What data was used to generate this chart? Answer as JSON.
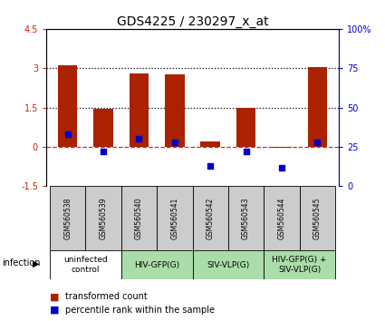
{
  "title": "GDS4225 / 230297_x_at",
  "samples": [
    "GSM560538",
    "GSM560539",
    "GSM560540",
    "GSM560541",
    "GSM560542",
    "GSM560543",
    "GSM560544",
    "GSM560545"
  ],
  "bar_values": [
    3.1,
    1.45,
    2.8,
    2.75,
    0.2,
    1.5,
    -0.05,
    3.05
  ],
  "percentile_values": [
    33,
    22,
    30,
    28,
    13,
    22,
    12,
    28
  ],
  "bar_color": "#AA2200",
  "dot_color": "#0000CC",
  "ylim_left": [
    -1.5,
    4.5
  ],
  "ylim_right": [
    0,
    100
  ],
  "yticks_left": [
    -1.5,
    0.0,
    1.5,
    3.0,
    4.5
  ],
  "yticks_right": [
    0,
    25,
    50,
    75,
    100
  ],
  "hlines": [
    3.0,
    1.5,
    0.0
  ],
  "hline_styles": [
    "dotted",
    "dotted",
    "dashed"
  ],
  "hline_colors": [
    "black",
    "black",
    "#CC3311"
  ],
  "groups": [
    {
      "label": "uninfected\ncontrol",
      "start": 0,
      "end": 1,
      "color": "#ffffff"
    },
    {
      "label": "HIV-GFP(G)",
      "start": 2,
      "end": 3,
      "color": "#aaddaa"
    },
    {
      "label": "SIV-VLP(G)",
      "start": 4,
      "end": 5,
      "color": "#aaddaa"
    },
    {
      "label": "HIV-GFP(G) +\nSIV-VLP(G)",
      "start": 6,
      "end": 7,
      "color": "#aaddaa"
    }
  ],
  "sample_bg_color": "#cccccc",
  "infection_label": "infection",
  "bar_width": 0.55,
  "title_fontsize": 10,
  "tick_fontsize": 7,
  "sample_fontsize": 5.5,
  "group_fontsize": 6.5,
  "legend_fontsize": 7
}
